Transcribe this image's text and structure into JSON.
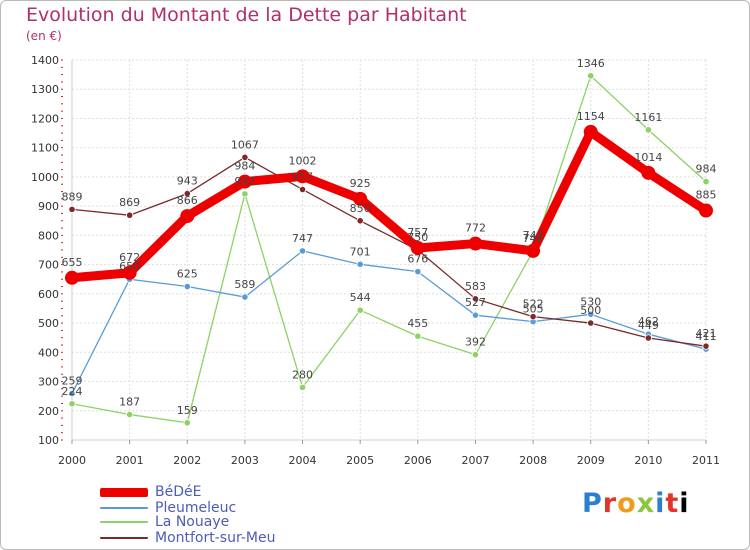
{
  "chart_data": {
    "type": "line",
    "title": "Evolution du Montant de la Dette par Habitant",
    "ylabel": "(en €)",
    "xlabel": "",
    "ylim": [
      100,
      1400
    ],
    "y_ticks": [
      "100",
      "200",
      "300",
      "400",
      "500",
      "600",
      "700",
      "800",
      "900",
      "1000",
      "1100",
      "1200",
      "1300",
      "1400"
    ],
    "x": [
      "2000",
      "2001",
      "2002",
      "2003",
      "2004",
      "2005",
      "2006",
      "2007",
      "2008",
      "2009",
      "2010",
      "2011"
    ],
    "grid": true,
    "legend_position": "bottom-left",
    "series": [
      {
        "name": "BéDéE",
        "color": "#ee0000",
        "values": [
          655,
          672,
          866,
          984,
          1002,
          925,
          757,
          772,
          747,
          1154,
          1014,
          885
        ]
      },
      {
        "name": "Pleumeleuc",
        "color": "#5b9bd5",
        "values": [
          259,
          650,
          625,
          589,
          747,
          701,
          676,
          527,
          505,
          530,
          462,
          411
        ]
      },
      {
        "name": "La Nouaye",
        "color": "#8ed165",
        "values": [
          224,
          187,
          159,
          942,
          280,
          544,
          455,
          392,
          746,
          1346,
          1161,
          984
        ]
      },
      {
        "name": "Montfort-sur-Meu",
        "color": "#7a2a2a",
        "values": [
          889,
          869,
          943,
          1067,
          957,
          850,
          750,
          583,
          522,
          500,
          449,
          421
        ]
      }
    ]
  },
  "logo_letters": [
    "P",
    "r",
    "o",
    "x",
    "i",
    "t",
    "i"
  ]
}
